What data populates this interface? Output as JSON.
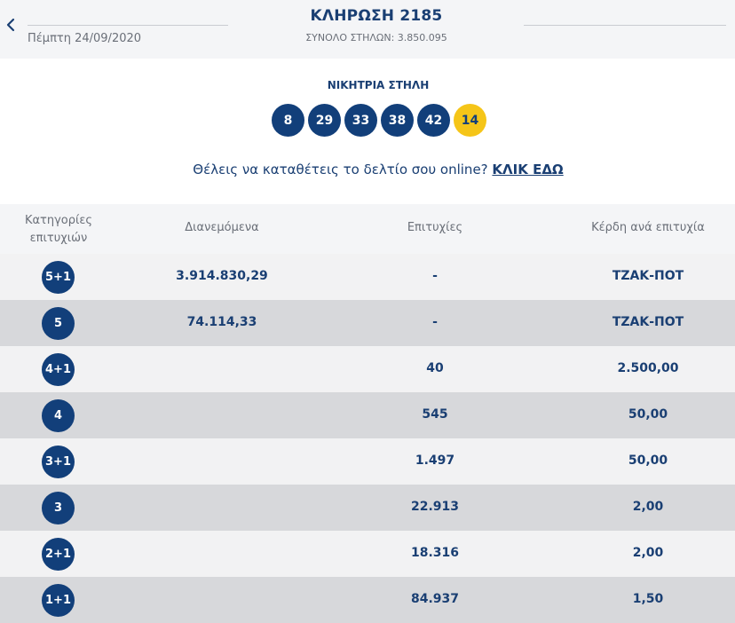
{
  "header": {
    "back_icon": "chevron-left-icon",
    "date": "Πέμπτη 24/09/2020",
    "title": "ΚΛΗΡΩΣΗ 2185",
    "total_columns": "ΣΥΝΟΛΟ ΣΤΗΛΩΝ: 3.850.095"
  },
  "winning": {
    "label": "ΝΙΚΗΤΡΙΑ ΣΤΗΛΗ",
    "numbers": [
      "8",
      "29",
      "33",
      "38",
      "42"
    ],
    "joker": "14"
  },
  "promo": {
    "text": "Θέλεις να καταθέτεις το δελτίο σου online?",
    "link": "ΚΛΙΚ ΕΔΩ"
  },
  "table": {
    "headers": {
      "category_line1": "Κατηγορίες",
      "category_line2": "επιτυχιών",
      "distributed": "Διανεμόμενα",
      "winners": "Επιτυχίες",
      "prize": "Κέρδη ανά επιτυχία"
    },
    "rows": [
      {
        "category": "5+1",
        "distributed": "3.914.830,29",
        "winners": "-",
        "prize": "ΤΖΑΚ-ΠΟΤ"
      },
      {
        "category": "5",
        "distributed": "74.114,33",
        "winners": "-",
        "prize": "ΤΖΑΚ-ΠΟΤ"
      },
      {
        "category": "4+1",
        "distributed": "",
        "winners": "40",
        "prize": "2.500,00"
      },
      {
        "category": "4",
        "distributed": "",
        "winners": "545",
        "prize": "50,00"
      },
      {
        "category": "3+1",
        "distributed": "",
        "winners": "1.497",
        "prize": "50,00"
      },
      {
        "category": "3",
        "distributed": "",
        "winners": "22.913",
        "prize": "2,00"
      },
      {
        "category": "2+1",
        "distributed": "",
        "winners": "18.316",
        "prize": "2,00"
      },
      {
        "category": "1+1",
        "distributed": "",
        "winners": "84.937",
        "prize": "1,50"
      }
    ]
  },
  "colors": {
    "navy": "#123f7a",
    "joker_yellow": "#f5c518",
    "row_light": "#f2f2f3",
    "row_dark": "#d7d8db"
  }
}
